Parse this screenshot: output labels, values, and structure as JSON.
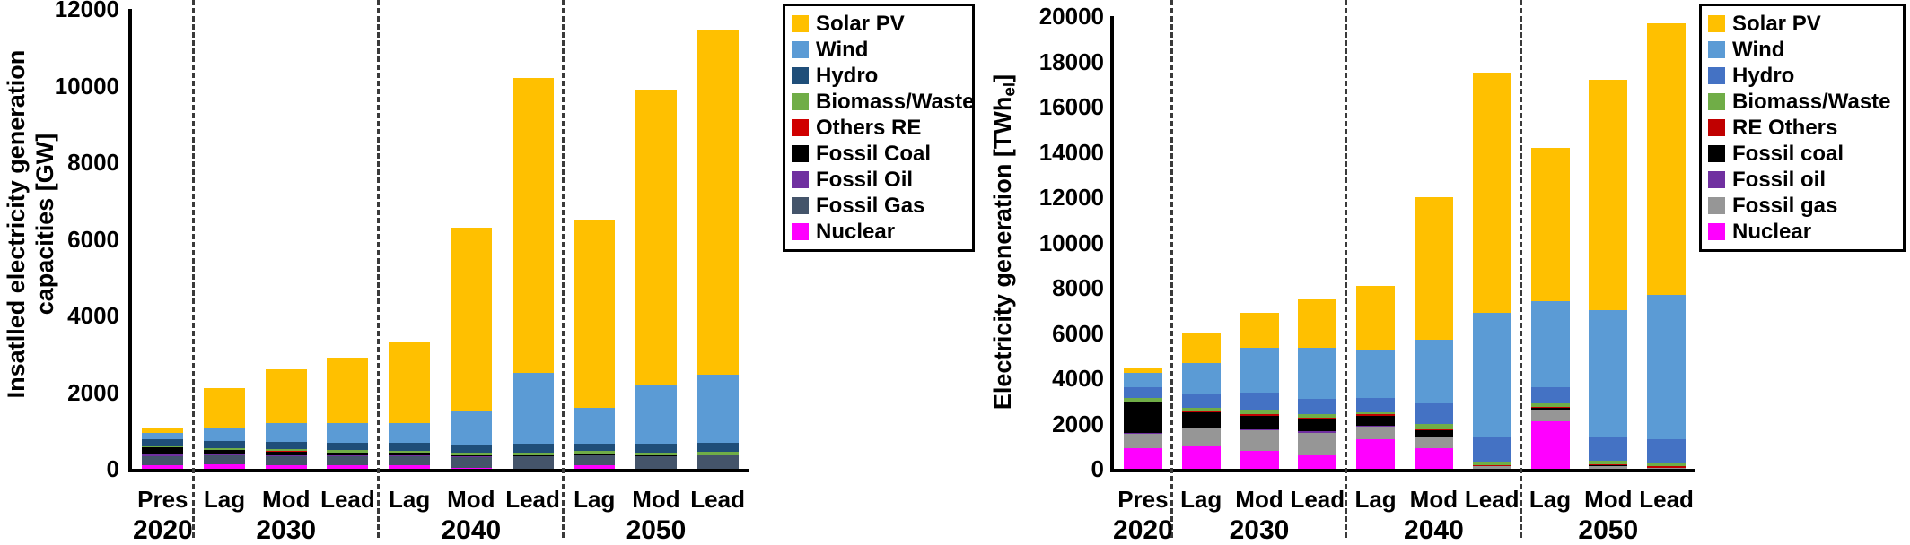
{
  "page": {
    "background": "#ffffff"
  },
  "chart_data": [
    {
      "type": "bar",
      "stacked": true,
      "title": "",
      "ylabel": "Insatlled electricity generation capacities [GW]",
      "ylabel_lines": [
        "Insatlled electricity generation",
        "capacities [GW]"
      ],
      "unit": "GW",
      "ylim": [
        0,
        12000
      ],
      "ytick_step": 2000,
      "grid": false,
      "legend_position": "top-right",
      "categories": [
        "Pres",
        "Lag",
        "Mod",
        "Lead",
        "Lag",
        "Mod",
        "Lead",
        "Lag",
        "Mod",
        "Lead"
      ],
      "groups": [
        {
          "year": "2020",
          "start_slot": 0,
          "end_slot": 0,
          "year_label_slot": 0
        },
        {
          "year": "2030",
          "start_slot": 1,
          "end_slot": 3,
          "year_label_slot": 2
        },
        {
          "year": "2040",
          "start_slot": 4,
          "end_slot": 6,
          "year_label_slot": 5
        },
        {
          "year": "2050",
          "start_slot": 7,
          "end_slot": 9,
          "year_label_slot": 8
        }
      ],
      "series": [
        {
          "name": "Solar PV",
          "color": "#FFC000",
          "values": [
            110,
            1050,
            1400,
            1700,
            2100,
            4800,
            7700,
            4900,
            7700,
            9000
          ]
        },
        {
          "name": "Wind",
          "color": "#5B9BD5",
          "values": [
            160,
            320,
            500,
            520,
            530,
            870,
            1850,
            940,
            1550,
            1770
          ]
        },
        {
          "name": "Hydro",
          "color": "#1F4E79",
          "values": [
            170,
            180,
            180,
            190,
            190,
            200,
            220,
            200,
            220,
            230
          ]
        },
        {
          "name": "Biomass/Waste",
          "color": "#70AD47",
          "values": [
            40,
            50,
            55,
            60,
            60,
            70,
            80,
            70,
            80,
            90
          ]
        },
        {
          "name": "Others RE",
          "color": "#D00000",
          "values": [
            10,
            10,
            10,
            10,
            10,
            10,
            10,
            10,
            10,
            10
          ]
        },
        {
          "name": "Fossil Coal",
          "color": "#000000",
          "values": [
            190,
            120,
            100,
            80,
            60,
            30,
            10,
            30,
            5,
            5
          ]
        },
        {
          "name": "Fossil Oil",
          "color": "#7030A0",
          "values": [
            40,
            30,
            25,
            20,
            20,
            10,
            10,
            10,
            5,
            5
          ]
        },
        {
          "name": "Fossil Gas",
          "color": "#44546A",
          "values": [
            230,
            230,
            230,
            230,
            230,
            280,
            320,
            250,
            330,
            340
          ]
        },
        {
          "name": "Nuclear",
          "color": "#FF00FF",
          "values": [
            100,
            110,
            100,
            90,
            100,
            30,
            0,
            90,
            0,
            0
          ]
        }
      ],
      "totals": [
        1050,
        2100,
        2600,
        2900,
        3300,
        6300,
        10200,
        6500,
        9900,
        11450
      ],
      "stack_order_note": "stacked bottom-to-top in reverse of series list (Nuclear at bottom, Solar PV on top)"
    },
    {
      "type": "bar",
      "stacked": true,
      "title": "",
      "ylabel": "Electricity generation [TWhel]",
      "ylabel_parts": {
        "main": "Electricity generation [TWh",
        "sub": "el",
        "close": "]"
      },
      "unit": "TWh",
      "ylim": [
        0,
        20000
      ],
      "ytick_step": 2000,
      "grid": false,
      "legend_position": "top-right",
      "categories": [
        "Pres",
        "Lag",
        "Mod",
        "Lead",
        "Lag",
        "Mod",
        "Lead",
        "Lag",
        "Mod",
        "Lead"
      ],
      "groups": [
        {
          "year": "2020",
          "start_slot": 0,
          "end_slot": 0,
          "year_label_slot": 0
        },
        {
          "year": "2030",
          "start_slot": 1,
          "end_slot": 3,
          "year_label_slot": 2
        },
        {
          "year": "2040",
          "start_slot": 4,
          "end_slot": 6,
          "year_label_slot": 5
        },
        {
          "year": "2050",
          "start_slot": 7,
          "end_slot": 9,
          "year_label_slot": 8
        }
      ],
      "series": [
        {
          "name": "Solar PV",
          "color": "#FFC000",
          "values": [
            230,
            1320,
            1550,
            2150,
            2850,
            6300,
            10600,
            6800,
            10200,
            12000
          ]
        },
        {
          "name": "Wind",
          "color": "#5B9BD5",
          "values": [
            600,
            1400,
            2000,
            2250,
            2100,
            2800,
            5500,
            3800,
            5600,
            6400
          ]
        },
        {
          "name": "Hydro",
          "color": "#4472C4",
          "values": [
            500,
            600,
            750,
            700,
            650,
            900,
            1100,
            700,
            1050,
            1050
          ]
        },
        {
          "name": "Biomass/Waste",
          "color": "#70AD47",
          "values": [
            150,
            100,
            200,
            150,
            100,
            250,
            150,
            150,
            150,
            150
          ]
        },
        {
          "name": "RE Others",
          "color": "#C00000",
          "values": [
            20,
            100,
            50,
            50,
            50,
            50,
            50,
            50,
            50,
            50
          ]
        },
        {
          "name": "Fossil coal",
          "color": "#000000",
          "values": [
            1350,
            650,
            600,
            550,
            450,
            280,
            0,
            80,
            40,
            0
          ]
        },
        {
          "name": "Fossil oil",
          "color": "#7030A0",
          "values": [
            50,
            30,
            50,
            50,
            50,
            20,
            0,
            20,
            10,
            0
          ]
        },
        {
          "name": "Fossil gas",
          "color": "#969696",
          "values": [
            650,
            800,
            900,
            1000,
            550,
            500,
            100,
            500,
            100,
            50
          ]
        },
        {
          "name": "Nuclear",
          "color": "#FF00FF",
          "values": [
            900,
            1000,
            800,
            600,
            1300,
            900,
            0,
            2100,
            0,
            0
          ]
        }
      ],
      "totals": [
        4450,
        6000,
        6900,
        7500,
        8100,
        12000,
        17500,
        14200,
        17200,
        19700
      ],
      "stack_order_note": "stacked bottom-to-top in reverse of series list (Nuclear at bottom, Solar PV on top)"
    }
  ]
}
